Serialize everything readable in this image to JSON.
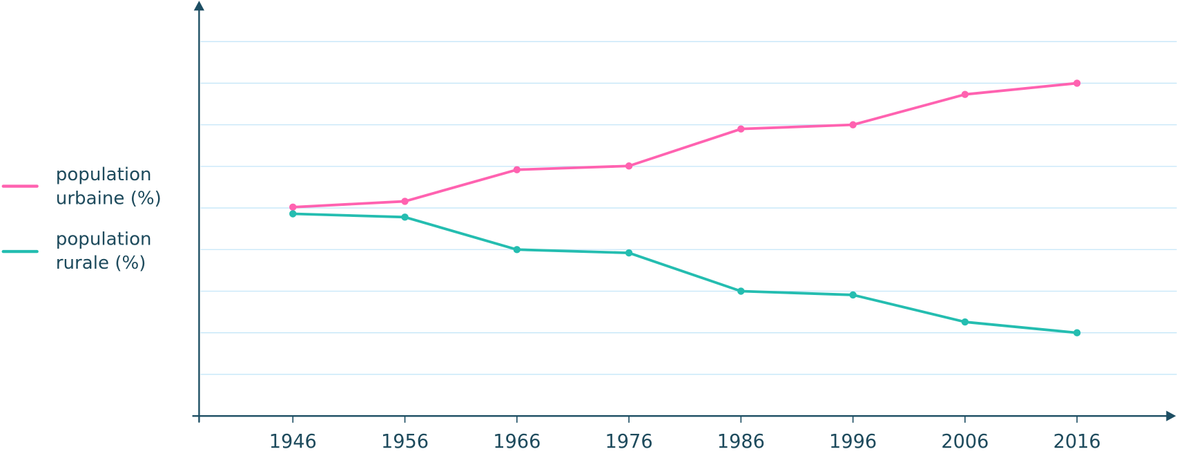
{
  "chart_data": {
    "type": "line",
    "title": "",
    "xlabel": "",
    "ylabel": "",
    "x": [
      1946,
      1956,
      1966,
      1976,
      1986,
      1996,
      2006,
      2016
    ],
    "tick_labels": [
      "1946",
      "1956",
      "1966",
      "1976",
      "1986",
      "1996",
      "2006",
      "2016"
    ],
    "ylim": [
      0,
      100
    ],
    "y_gridlines": [
      10,
      20,
      30,
      40,
      50,
      60,
      70,
      80,
      90
    ],
    "grid": true,
    "legend_position": "left",
    "series": [
      {
        "name": "urbaine",
        "label_line1": "population",
        "label_line2": "urbaine (%)",
        "color": "#ff62b0",
        "values": [
          50.2,
          51.6,
          59.2,
          60.1,
          69.0,
          70.0,
          77.3,
          80.0
        ]
      },
      {
        "name": "rurale",
        "label_line1": "population",
        "label_line2": "rurale (%)",
        "color": "#24bdb0",
        "values": [
          48.6,
          47.8,
          40.0,
          39.2,
          30.0,
          29.1,
          22.6,
          20.0
        ]
      }
    ]
  },
  "colors": {
    "axis": "#1d4e63",
    "grid": "#c4e6f8",
    "text": "#1d4a5c"
  }
}
